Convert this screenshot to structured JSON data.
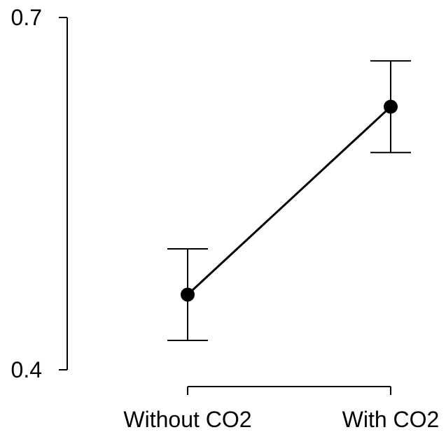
{
  "chart_data": {
    "type": "line",
    "categories": [
      "Without CO2",
      "With CO2"
    ],
    "series": [
      {
        "values": [
          0.464,
          0.624
        ],
        "error_low": [
          0.425,
          0.585
        ],
        "error_high": [
          0.503,
          0.663
        ]
      }
    ],
    "yticks": [
      "0.7",
      "0.4"
    ],
    "ylim": [
      0.4,
      0.7
    ],
    "grid": false,
    "legend": "none",
    "colors": {
      "line": "#000000",
      "marker": "#000000",
      "axis": "#000000"
    }
  }
}
